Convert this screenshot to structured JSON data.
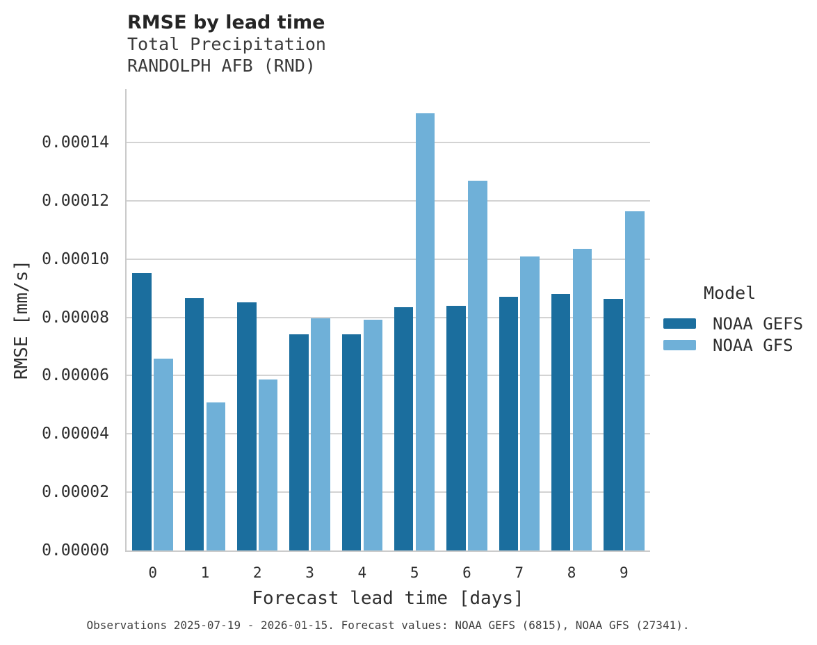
{
  "title": "RMSE by lead time",
  "subtitle1": "Total Precipitation",
  "subtitle2": "RANDOLPH AFB (RND)",
  "footer": "Observations 2025-07-19 - 2026-01-15. Forecast values: NOAA GEFS (6815), NOAA GFS (27341).",
  "legend": {
    "title": "Model",
    "entries": [
      {
        "label": "NOAA GEFS",
        "color": "#1b6e9e"
      },
      {
        "label": "NOAA GFS",
        "color": "#6fb0d8"
      }
    ]
  },
  "colors": {
    "gefs": "#1b6e9e",
    "gfs": "#6fb0d8",
    "gridline": "#d3d3d3",
    "axis_spine": "#cbcbcb"
  },
  "chart_data": {
    "type": "bar",
    "title": "RMSE by lead time",
    "subtitle": [
      "Total Precipitation",
      "RANDOLPH AFB (RND)"
    ],
    "xlabel": "Forecast lead time [days]",
    "ylabel": "RMSE [mm/s]",
    "categories": [
      "0",
      "1",
      "2",
      "3",
      "4",
      "5",
      "6",
      "7",
      "8",
      "9"
    ],
    "series": [
      {
        "name": "NOAA GEFS",
        "color": "#1b6e9e",
        "values": [
          9.53e-05,
          8.66e-05,
          8.52e-05,
          7.43e-05,
          7.43e-05,
          8.36e-05,
          8.4e-05,
          8.71e-05,
          8.81e-05,
          8.63e-05
        ]
      },
      {
        "name": "NOAA GFS",
        "color": "#6fb0d8",
        "values": [
          6.59e-05,
          5.07e-05,
          5.86e-05,
          7.97e-05,
          7.93e-05,
          0.00015,
          0.0001269,
          0.000101,
          0.0001035,
          0.0001165
        ]
      }
    ],
    "ylim": [
      0,
      0.0001584
    ],
    "ytick_step": 2e-05,
    "ytick_labels": [
      "0.00000",
      "0.00002",
      "0.00004",
      "0.00006",
      "0.00008",
      "0.00010",
      "0.00012",
      "0.00014"
    ],
    "grid": "horizontal",
    "legend_position": "right",
    "legend_title": "Model"
  }
}
